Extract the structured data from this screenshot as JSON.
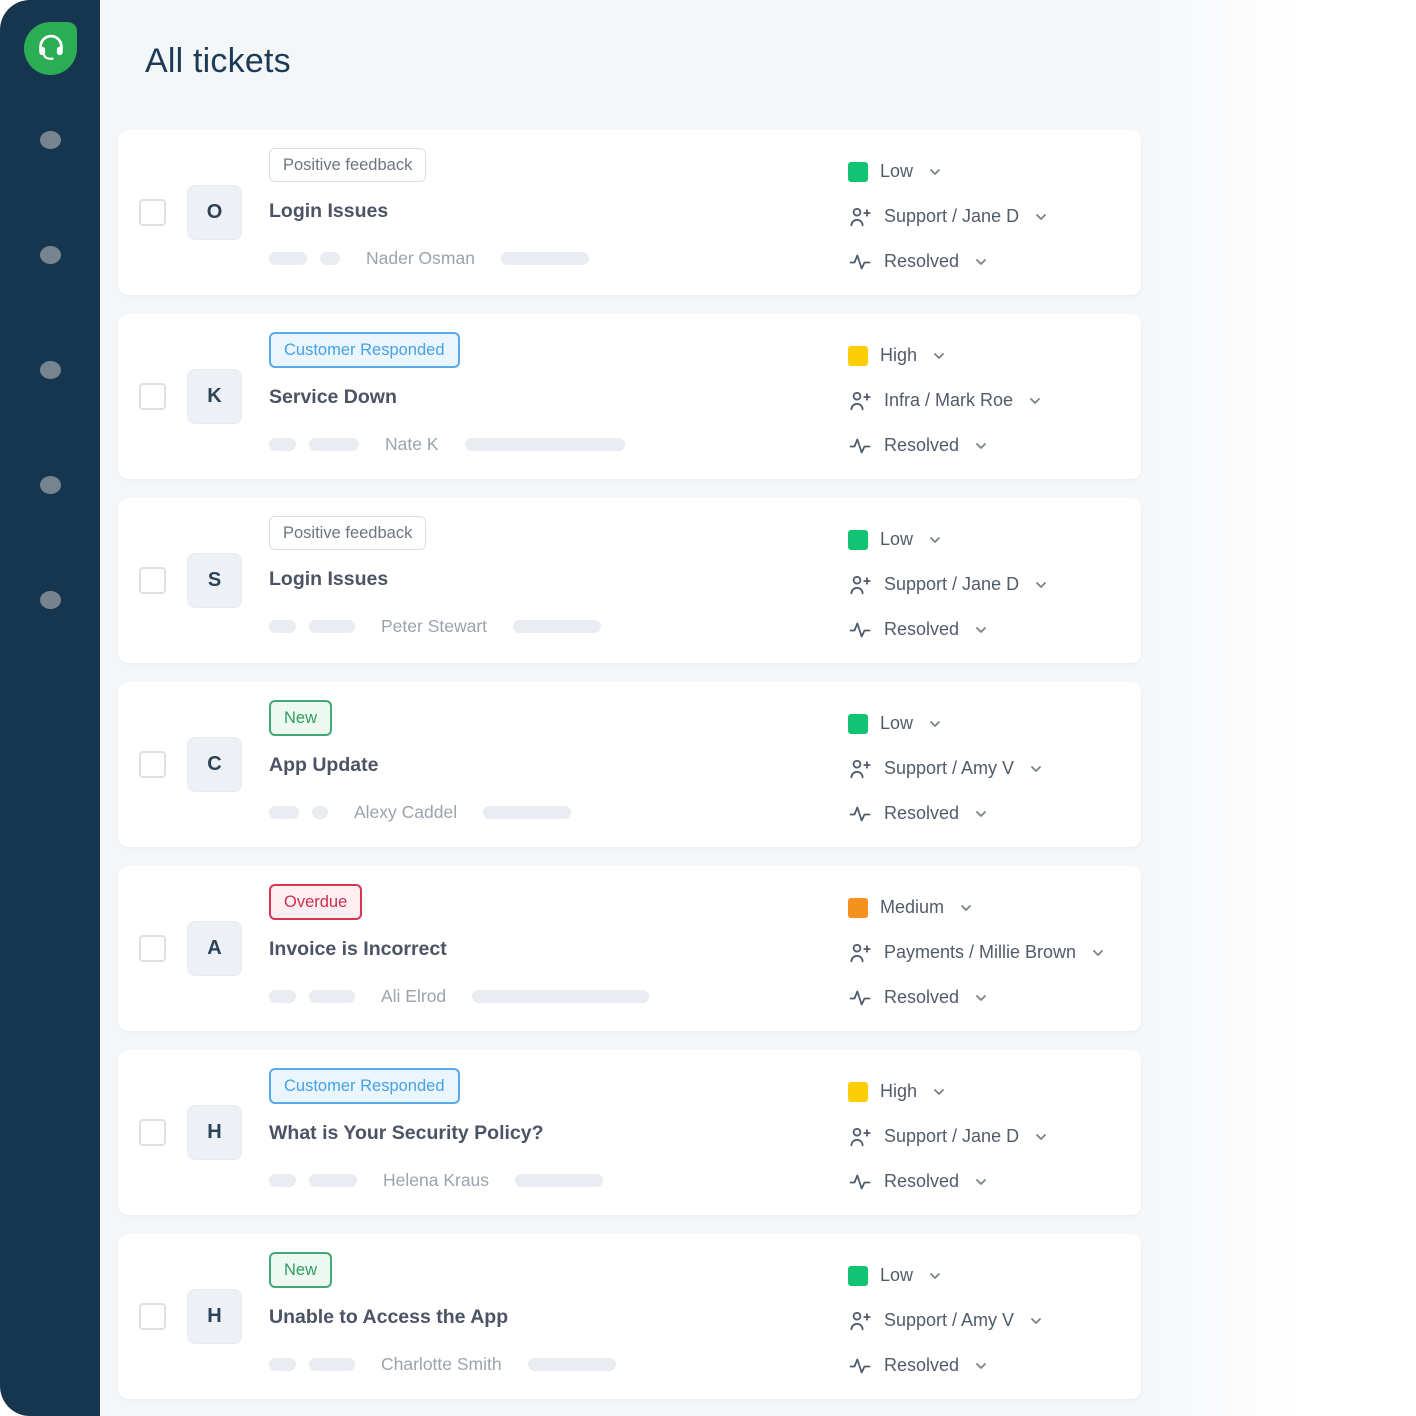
{
  "header": {
    "title": "All tickets"
  },
  "sidebar": {
    "logo_icon": "headset-icon",
    "menu_dot_count": 5
  },
  "theme": {
    "sidebar_bg": "#16354F",
    "logo_green": "#2BAD54",
    "page_bg": "#F4F6F8",
    "priority_low": "#12C374",
    "priority_high": "#FBCE07",
    "priority_medium": "#F5921E",
    "badge_info_blue": "#46A1E6",
    "badge_success_green": "#2F9E63",
    "badge_danger_red": "#CE2F4D"
  },
  "tickets": [
    {
      "avatar_letter": "O",
      "badge": {
        "label": "Positive feedback",
        "type": "neutral"
      },
      "title": "Login Issues",
      "requester": "Nader Osman",
      "skeleton": {
        "lead": [
          38,
          20
        ],
        "trail": 88
      },
      "priority": {
        "label": "Low",
        "color": "#12C374"
      },
      "assignee": "Support / Jane D",
      "status": "Resolved"
    },
    {
      "avatar_letter": "K",
      "badge": {
        "label": "Customer Responded",
        "type": "info"
      },
      "title": "Service Down",
      "requester": "Nate K",
      "skeleton": {
        "lead": [
          27,
          50
        ],
        "trail": 160
      },
      "priority": {
        "label": "High",
        "color": "#FBCE07"
      },
      "assignee": "Infra / Mark Roe",
      "status": "Resolved"
    },
    {
      "avatar_letter": "S",
      "badge": {
        "label": "Positive feedback",
        "type": "neutral"
      },
      "title": "Login Issues",
      "requester": "Peter Stewart",
      "skeleton": {
        "lead": [
          27,
          46
        ],
        "trail": 88
      },
      "priority": {
        "label": "Low",
        "color": "#12C374"
      },
      "assignee": "Support / Jane D",
      "status": "Resolved"
    },
    {
      "avatar_letter": "C",
      "badge": {
        "label": "New",
        "type": "success"
      },
      "title": "App Update",
      "requester": "Alexy Caddel",
      "skeleton": {
        "lead": [
          30,
          16
        ],
        "trail": 88
      },
      "priority": {
        "label": "Low",
        "color": "#12C374"
      },
      "assignee": "Support / Amy V",
      "status": "Resolved"
    },
    {
      "avatar_letter": "A",
      "badge": {
        "label": "Overdue",
        "type": "danger"
      },
      "title": "Invoice is Incorrect",
      "requester": "Ali Elrod",
      "skeleton": {
        "lead": [
          27,
          46
        ],
        "trail": 177
      },
      "priority": {
        "label": "Medium",
        "color": "#F5921E"
      },
      "assignee": "Payments / Millie Brown",
      "status": "Resolved"
    },
    {
      "avatar_letter": "H",
      "badge": {
        "label": "Customer Responded",
        "type": "info"
      },
      "title": "What is Your Security Policy?",
      "requester": "Helena Kraus",
      "skeleton": {
        "lead": [
          27,
          48
        ],
        "trail": 88
      },
      "priority": {
        "label": "High",
        "color": "#FBCE07"
      },
      "assignee": "Support / Jane D",
      "status": "Resolved"
    },
    {
      "avatar_letter": "H",
      "badge": {
        "label": "New",
        "type": "success"
      },
      "title": "Unable to Access the App",
      "requester": "Charlotte Smith",
      "skeleton": {
        "lead": [
          27,
          46
        ],
        "trail": 88
      },
      "priority": {
        "label": "Low",
        "color": "#12C374"
      },
      "assignee": "Support / Amy V",
      "status": "Resolved"
    }
  ]
}
